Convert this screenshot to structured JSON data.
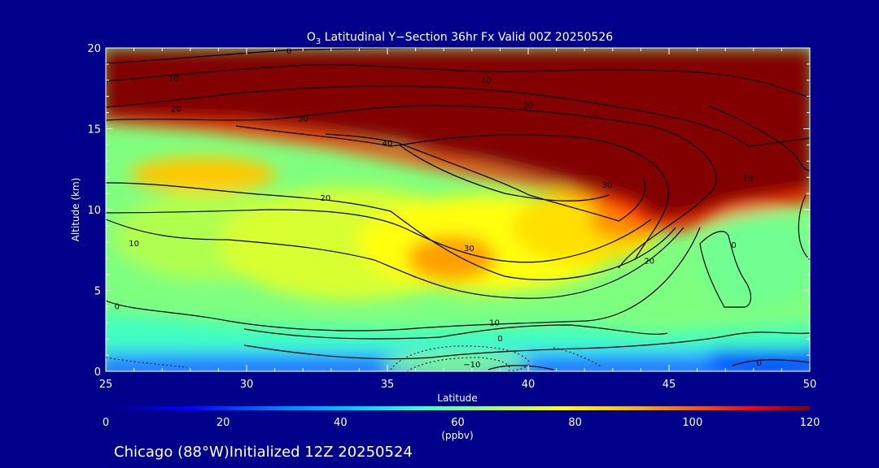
{
  "chart_data": {
    "type": "heatmap",
    "title_prefix": "O",
    "title_sub": "3",
    "title_rest": " Latitudinal Y−Section 36hr  Fx Valid 00Z 20250526",
    "xlabel": "Latitude",
    "ylabel": "Altitude (km)",
    "xlim": [
      25,
      50
    ],
    "ylim": [
      0,
      20
    ],
    "x_ticks": [
      "25",
      "30",
      "35",
      "40",
      "45",
      "50"
    ],
    "y_ticks": [
      "0",
      "5",
      "10",
      "15",
      "20"
    ],
    "colorbar": {
      "range": [
        0,
        120
      ],
      "ticks": [
        "0",
        "20",
        "40",
        "60",
        "80",
        "100",
        "120"
      ],
      "unit": "(ppbv)",
      "colors": [
        "#000080",
        "#0000ff",
        "#0080ff",
        "#00c8ff",
        "#40ffbf",
        "#a0ff60",
        "#ffff00",
        "#ffb400",
        "#ff6000",
        "#ff0000",
        "#800000"
      ]
    },
    "footer": "Chicago (88°W)Initialized 12Z 20250524",
    "contour_labels": [
      {
        "text": "0",
        "x": 31.5,
        "y": 19.8
      },
      {
        "text": "10",
        "x": 27.4,
        "y": 18.1
      },
      {
        "text": "10",
        "x": 38.5,
        "y": 18.0
      },
      {
        "text": "20",
        "x": 27.5,
        "y": 16.2
      },
      {
        "text": "20",
        "x": 40.0,
        "y": 16.4
      },
      {
        "text": "30",
        "x": 32.0,
        "y": 15.6
      },
      {
        "text": "40",
        "x": 35.0,
        "y": 14.1
      },
      {
        "text": "30",
        "x": 42.8,
        "y": 11.5
      },
      {
        "text": "10",
        "x": 47.8,
        "y": 11.9
      },
      {
        "text": "20",
        "x": 32.8,
        "y": 10.7
      },
      {
        "text": "10",
        "x": 26.0,
        "y": 7.9
      },
      {
        "text": "30",
        "x": 37.9,
        "y": 7.6
      },
      {
        "text": "20",
        "x": 44.3,
        "y": 6.8
      },
      {
        "text": "0",
        "x": 47.3,
        "y": 7.8
      },
      {
        "text": "0",
        "x": 25.4,
        "y": 4.0
      },
      {
        "text": "10",
        "x": 38.8,
        "y": 3.0
      },
      {
        "text": "0",
        "x": 39.0,
        "y": 2.0
      },
      {
        "text": "−10",
        "x": 38.0,
        "y": 0.4
      },
      {
        "text": "0",
        "x": 48.2,
        "y": 0.5
      }
    ]
  }
}
